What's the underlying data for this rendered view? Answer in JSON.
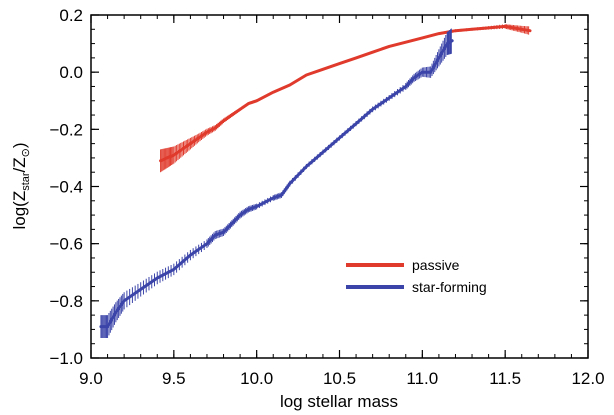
{
  "chart_data": {
    "type": "line",
    "title": "",
    "xlabel": "log stellar mass",
    "ylabel_parts": {
      "base": "log(Z",
      "sub1": "star",
      "mid": "/Z",
      "sub2": "⊙",
      "end": ")"
    },
    "xlim": [
      9.0,
      12.0
    ],
    "ylim": [
      -1.0,
      0.2
    ],
    "x_ticks": [
      "9.0",
      "9.5",
      "10.0",
      "10.5",
      "11.0",
      "11.5",
      "12.0"
    ],
    "y_ticks": [
      "−1.0",
      "−0.8",
      "−0.6",
      "−0.4",
      "−0.2",
      "0.0",
      "0.2"
    ],
    "legend_position": "lower-right",
    "series": [
      {
        "name": "passive",
        "color": "#e03a2c",
        "x": [
          9.42,
          9.46,
          9.5,
          9.55,
          9.6,
          9.65,
          9.7,
          9.75,
          9.8,
          9.85,
          9.9,
          9.95,
          10.0,
          10.1,
          10.2,
          10.3,
          10.4,
          10.5,
          10.6,
          10.7,
          10.8,
          10.9,
          11.0,
          11.1,
          11.2,
          11.3,
          11.4,
          11.5,
          11.55,
          11.6,
          11.65
        ],
        "y": [
          -0.31,
          -0.3,
          -0.29,
          -0.27,
          -0.25,
          -0.23,
          -0.21,
          -0.195,
          -0.17,
          -0.15,
          -0.13,
          -0.11,
          -0.1,
          -0.07,
          -0.045,
          -0.01,
          0.01,
          0.03,
          0.05,
          0.07,
          0.09,
          0.105,
          0.12,
          0.135,
          0.145,
          0.15,
          0.155,
          0.16,
          0.155,
          0.15,
          0.145
        ],
        "err": [
          0.04,
          0.035,
          0.03,
          0.025,
          0.02,
          0.015,
          0.012,
          0.01,
          0.008,
          0.007,
          0.006,
          0.005,
          0.005,
          0.004,
          0.004,
          0.003,
          0.003,
          0.003,
          0.003,
          0.003,
          0.003,
          0.003,
          0.004,
          0.004,
          0.005,
          0.005,
          0.006,
          0.008,
          0.01,
          0.012,
          0.015
        ]
      },
      {
        "name": "star-forming",
        "color": "#3b44a8",
        "x": [
          9.06,
          9.1,
          9.15,
          9.2,
          9.3,
          9.4,
          9.5,
          9.6,
          9.7,
          9.75,
          9.8,
          9.85,
          9.9,
          9.95,
          10.0,
          10.1,
          10.15,
          10.2,
          10.3,
          10.4,
          10.5,
          10.6,
          10.7,
          10.8,
          10.9,
          10.95,
          11.0,
          11.05,
          11.1,
          11.15,
          11.18
        ],
        "y": [
          -0.89,
          -0.89,
          -0.84,
          -0.8,
          -0.76,
          -0.72,
          -0.69,
          -0.64,
          -0.6,
          -0.57,
          -0.56,
          -0.53,
          -0.5,
          -0.48,
          -0.47,
          -0.44,
          -0.43,
          -0.39,
          -0.33,
          -0.28,
          -0.23,
          -0.18,
          -0.13,
          -0.09,
          -0.05,
          -0.02,
          0.0,
          0.0,
          0.05,
          0.1,
          0.11
        ],
        "err": [
          0.04,
          0.04,
          0.035,
          0.03,
          0.025,
          0.022,
          0.02,
          0.018,
          0.015,
          0.014,
          0.013,
          0.012,
          0.012,
          0.011,
          0.01,
          0.01,
          0.01,
          0.01,
          0.009,
          0.009,
          0.009,
          0.009,
          0.01,
          0.01,
          0.012,
          0.014,
          0.016,
          0.02,
          0.03,
          0.04,
          0.045
        ]
      }
    ]
  }
}
